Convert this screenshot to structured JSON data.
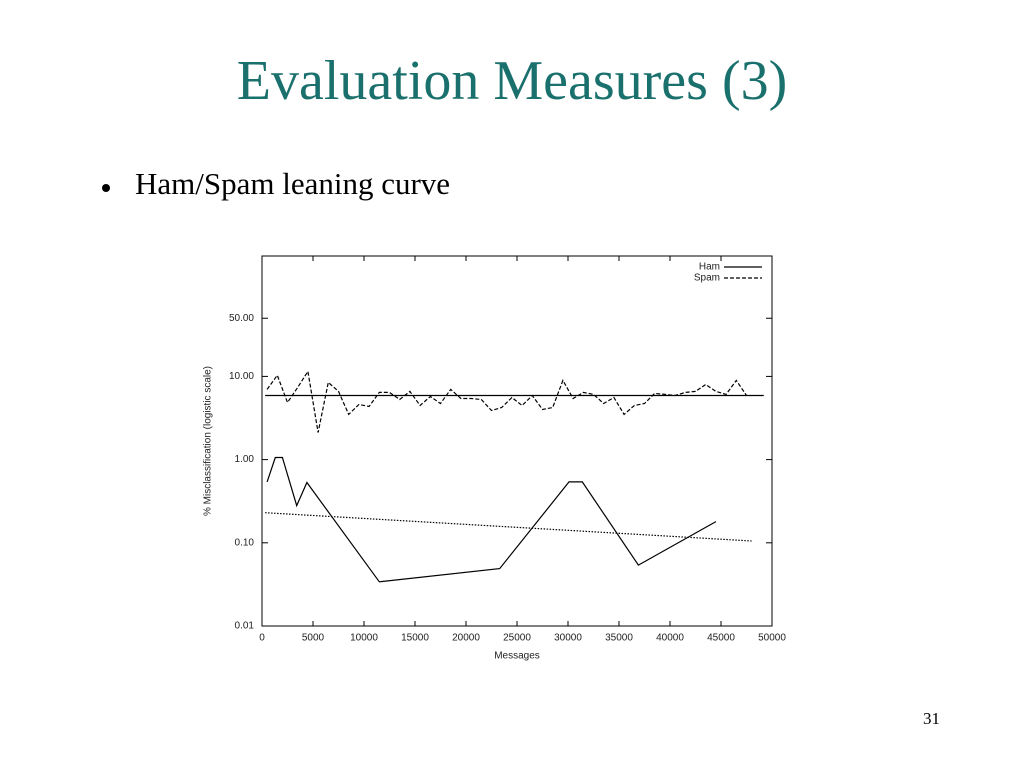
{
  "slide": {
    "title": "Evaluation Measures (3)",
    "bullet": "Ham/Spam leaning curve",
    "page_number": "31"
  },
  "chart_data": {
    "type": "line",
    "ylog": true,
    "x_label": "Messages",
    "y_label": "% Misclassification (logistic scale)",
    "xlim": [
      0,
      50000
    ],
    "xticks": [
      0,
      5000,
      10000,
      15000,
      20000,
      25000,
      30000,
      35000,
      40000,
      45000,
      50000
    ],
    "ylim": [
      0.01,
      280
    ],
    "yticks": [
      0.01,
      {
        "value": 0.1,
        "label": "0.10"
      },
      {
        "value": 1,
        "label": "1.00"
      },
      {
        "value": 10,
        "label": "10.00"
      },
      {
        "value": 50,
        "label": "50.00"
      }
    ],
    "legend": "upper right",
    "series": [
      {
        "name": "Ham",
        "color": "#000000",
        "style": "solid",
        "x": [
          500,
          1300,
          2000,
          3400,
          4400,
          11500,
          23300,
          30100,
          31400,
          36900,
          44500
        ],
        "values": [
          0.54,
          1.06,
          1.06,
          0.28,
          0.53,
          0.034,
          0.049,
          0.54,
          0.54,
          0.054,
          0.18
        ]
      },
      {
        "name": "Spam",
        "color": "#000000",
        "style": "dashed",
        "x": [
          500,
          1500,
          2500,
          3500,
          4500,
          5500,
          6500,
          7500,
          8500,
          9500,
          10500,
          11500,
          12500,
          13500,
          14500,
          15500,
          16500,
          17500,
          18500,
          19500,
          20500,
          21500,
          22500,
          23500,
          24500,
          25500,
          26500,
          27500,
          28500,
          29500,
          30500,
          31500,
          32500,
          33500,
          34500,
          35500,
          36500,
          37500,
          38500,
          39500,
          40500,
          41500,
          42500,
          43500,
          44500,
          45500,
          46500,
          47500
        ],
        "values": [
          6.97,
          10.3,
          4.86,
          7.37,
          11.5,
          2.12,
          8.47,
          6.6,
          3.49,
          4.6,
          4.35,
          6.42,
          6.42,
          5.28,
          6.6,
          4.47,
          5.74,
          4.73,
          6.97,
          5.43,
          5.43,
          5.28,
          3.89,
          4.23,
          5.58,
          4.47,
          5.9,
          4.0,
          4.23,
          8.95,
          5.43,
          6.42,
          6.07,
          4.73,
          5.58,
          3.49,
          4.47,
          4.73,
          6.24,
          6.07,
          5.9,
          6.42,
          6.6,
          8.0,
          6.6,
          6.07,
          8.95,
          5.9
        ]
      },
      {
        "color": "#000000",
        "style": "solid",
        "x": [
          300,
          49200
        ],
        "values": [
          5.9,
          5.9
        ]
      },
      {
        "color": "#000000",
        "style": "dotted",
        "x": [
          300,
          48000
        ],
        "values": [
          0.23,
          0.105
        ]
      }
    ]
  }
}
